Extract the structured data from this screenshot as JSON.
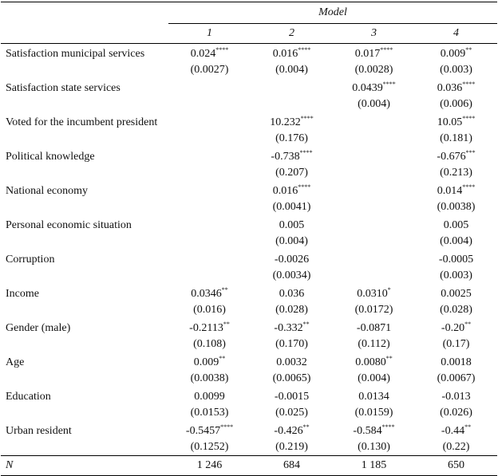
{
  "table": {
    "header": {
      "group": "Model",
      "columns": [
        "1",
        "2",
        "3",
        "4"
      ]
    },
    "rows": [
      {
        "label": "Satisfaction municipal services",
        "cells": [
          {
            "coef": "0.024",
            "stars": "****",
            "se": "(0.0027)"
          },
          {
            "coef": "0.016",
            "stars": "****",
            "se": "(0.004)"
          },
          {
            "coef": "0.017",
            "stars": "****",
            "se": "(0.0028)"
          },
          {
            "coef": "0.009",
            "stars": "**",
            "se": "(0.003)"
          }
        ]
      },
      {
        "label": "Satisfaction state services",
        "cells": [
          null,
          null,
          {
            "coef": "0.0439",
            "stars": "****",
            "se": "(0.004)"
          },
          {
            "coef": "0.036",
            "stars": "****",
            "se": "(0.006)"
          }
        ]
      },
      {
        "label": "Voted for the incumbent president",
        "cells": [
          null,
          {
            "coef": "10.232",
            "stars": "****",
            "se": "(0.176)"
          },
          null,
          {
            "coef": "10.05",
            "stars": "****",
            "se": "(0.181)"
          }
        ]
      },
      {
        "label": "Political knowledge",
        "cells": [
          null,
          {
            "coef": "-0.738",
            "stars": "****",
            "se": "(0.207)"
          },
          null,
          {
            "coef": "-0.676",
            "stars": "***",
            "se": "(0.213)"
          }
        ]
      },
      {
        "label": "National economy",
        "cells": [
          null,
          {
            "coef": "0.016",
            "stars": "****",
            "se": "(0.0041)"
          },
          null,
          {
            "coef": "0.014",
            "stars": "****",
            "se": "(0.0038)"
          }
        ]
      },
      {
        "label": "Personal economic situation",
        "cells": [
          null,
          {
            "coef": "0.005",
            "se": "(0.004)"
          },
          null,
          {
            "coef": "0.005",
            "se": "(0.004)"
          }
        ]
      },
      {
        "label": "Corruption",
        "cells": [
          null,
          {
            "coef": "-0.0026",
            "se": "(0.0034)"
          },
          null,
          {
            "coef": "-0.0005",
            "se": "(0.003)"
          }
        ]
      },
      {
        "label": "Income",
        "cells": [
          {
            "coef": "0.0346",
            "stars": "**",
            "se": "(0.016)"
          },
          {
            "coef": "0.036",
            "se": "(0.028)"
          },
          {
            "coef": "0.0310",
            "stars": "*",
            "se": "(0.0172)"
          },
          {
            "coef": "0.0025",
            "se": "(0.028)"
          }
        ]
      },
      {
        "label": "Gender (male)",
        "cells": [
          {
            "coef": "-0.2113",
            "stars": "**",
            "se": "(0.108)"
          },
          {
            "coef": "-0.332",
            "stars": "**",
            "se": "(0.170)"
          },
          {
            "coef": "-0.0871",
            "se": "(0.112)"
          },
          {
            "coef": "-0.20",
            "stars": "**",
            "se": "(0.17)"
          }
        ]
      },
      {
        "label": "Age",
        "cells": [
          {
            "coef": "0.009",
            "stars": "**",
            "se": "(0.0038)"
          },
          {
            "coef": "0.0032",
            "se": "(0.0065)"
          },
          {
            "coef": "0.0080",
            "stars": "**",
            "se": "(0.004)"
          },
          {
            "coef": "0.0018",
            "se": "(0.0067)"
          }
        ]
      },
      {
        "label": "Education",
        "cells": [
          {
            "coef": "0.0099",
            "se": "(0.0153)"
          },
          {
            "coef": "-0.0015",
            "se": "(0.025)"
          },
          {
            "coef": "0.0134",
            "se": "(0.0159)"
          },
          {
            "coef": "-0.013",
            "se": "(0.026)"
          }
        ]
      },
      {
        "label": "Urban resident",
        "cells": [
          {
            "coef": "-0.5457",
            "stars": "****",
            "se": "(0.1252)"
          },
          {
            "coef": "-0.426",
            "stars": "**",
            "se": "(0.219)"
          },
          {
            "coef": "-0.584",
            "stars": "****",
            "se": "(0.130)"
          },
          {
            "coef": "-0.44",
            "stars": "**",
            "se": "(0.22)"
          }
        ]
      }
    ],
    "footer": {
      "label": "N",
      "values": [
        "1 246",
        "684",
        "1 185",
        "650"
      ]
    }
  }
}
